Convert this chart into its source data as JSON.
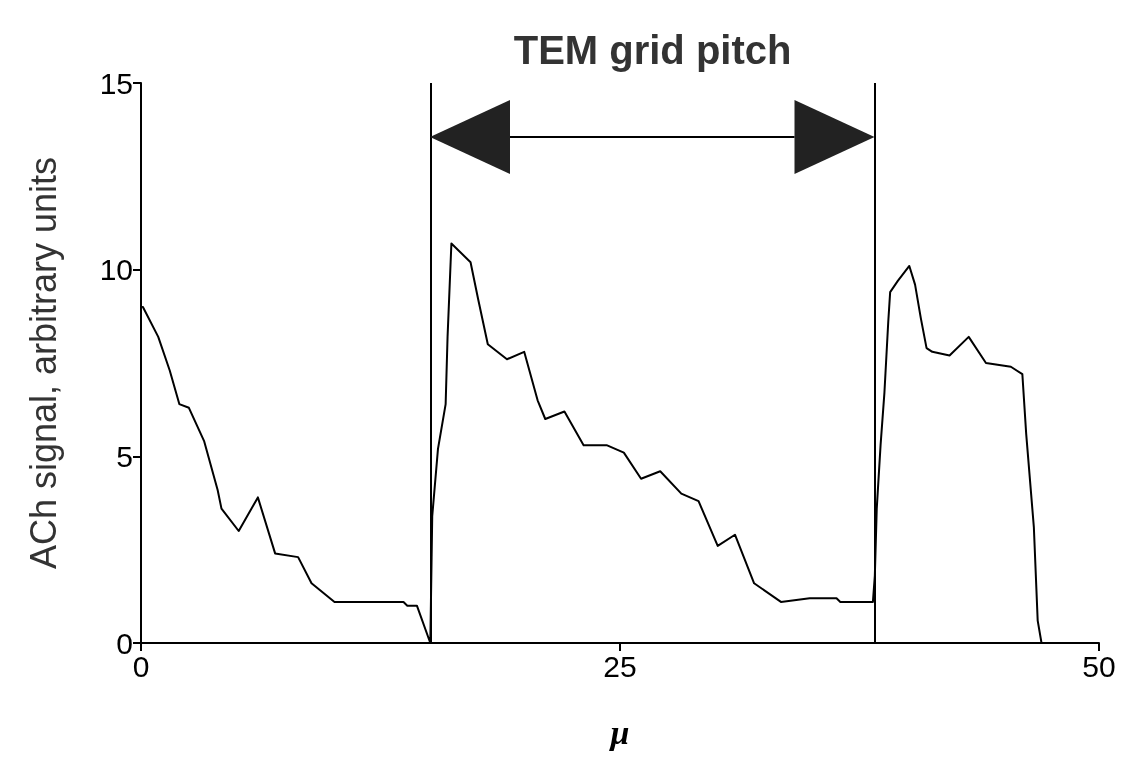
{
  "chart_data": {
    "type": "line",
    "xlabel": "μ",
    "ylabel": "ACh signal, arbitrary units",
    "xlim": [
      0,
      50
    ],
    "ylim": [
      0,
      15
    ],
    "xticks": [
      0,
      25,
      50
    ],
    "yticks": [
      0,
      5,
      10,
      15
    ],
    "grid": false,
    "marker": "none",
    "line_style": "solid",
    "series": [
      {
        "color": "#000000",
        "x": [
          0.1,
          0.9,
          1.5,
          2.0,
          2.5,
          3.3,
          4.0,
          4.2,
          5.1,
          6.1,
          7.0,
          8.2,
          8.9,
          10.1,
          13.7,
          13.9,
          14.4,
          15.1,
          15.2,
          15.5,
          15.9,
          16.0,
          16.2,
          17.2,
          17.6,
          18.1,
          19.1,
          20.0,
          20.7,
          21.1,
          22.1,
          23.1,
          24.3,
          25.2,
          26.1,
          27.1,
          28.2,
          29.1,
          30.1,
          31.0,
          32.0,
          33.4,
          34.9,
          36.3,
          36.5,
          37.9,
          38.2,
          38.3,
          38.4,
          38.6,
          38.8,
          39.0,
          39.1,
          39.5,
          40.1,
          40.4,
          40.7,
          41.0,
          41.3,
          42.2,
          43.2,
          44.1,
          45.4,
          46.0,
          46.2,
          46.6,
          46.8,
          47.0
        ],
        "values": [
          9.0,
          8.2,
          7.3,
          6.4,
          6.3,
          5.4,
          4.1,
          3.6,
          3.0,
          3.9,
          2.4,
          2.3,
          1.6,
          1.1,
          1.1,
          1.0,
          1.0,
          0,
          3.4,
          5.2,
          6.4,
          8.2,
          10.7,
          10.2,
          9.2,
          8.0,
          7.6,
          7.8,
          6.5,
          6.0,
          6.2,
          5.3,
          5.3,
          5.1,
          4.4,
          4.6,
          4.0,
          3.8,
          2.6,
          2.9,
          1.6,
          1.1,
          1.2,
          1.2,
          1.1,
          1.1,
          1.1,
          1.8,
          3.6,
          5.3,
          6.7,
          8.6,
          9.4,
          9.7,
          10.1,
          9.6,
          8.7,
          7.9,
          7.8,
          7.7,
          8.2,
          7.5,
          7.4,
          7.2,
          5.6,
          3.1,
          0.6,
          0
        ]
      }
    ],
    "ref_lines": [
      {
        "axis": "x",
        "value": 15.1,
        "color": "#000000"
      },
      {
        "axis": "x",
        "value": 38.3,
        "color": "#000000"
      }
    ],
    "annotations": [
      "TEM grid pitch"
    ]
  }
}
